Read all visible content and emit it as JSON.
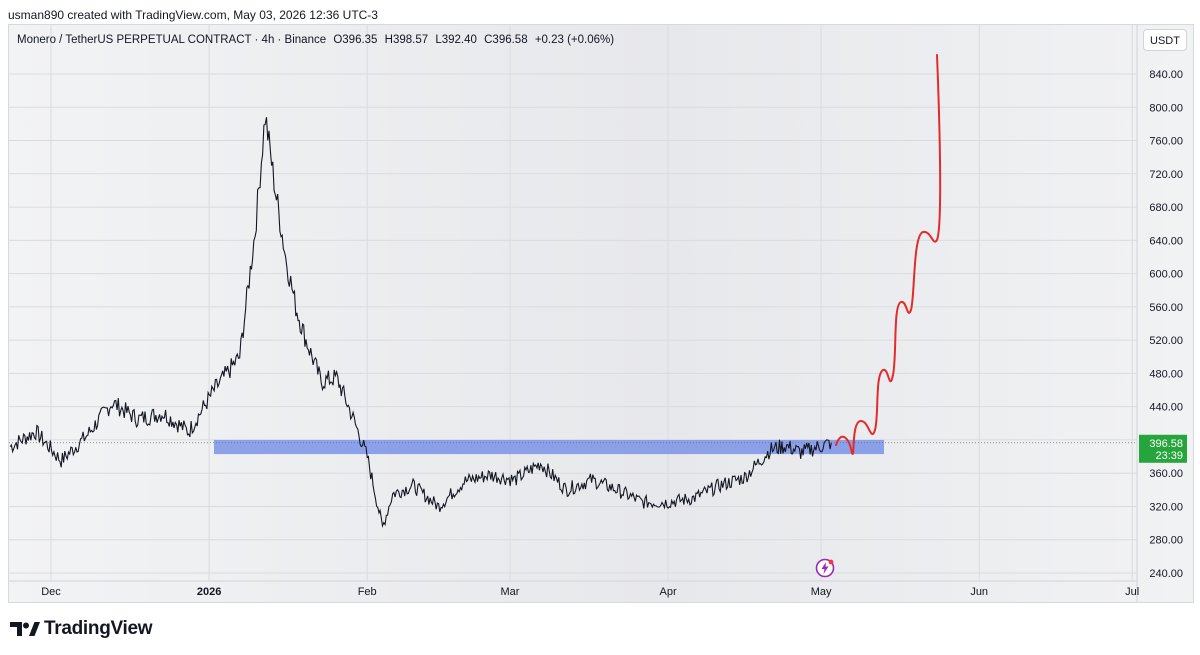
{
  "attribution": "usman890 created with TradingView.com, May 03, 2026 12:36 UTC-3",
  "symbol": {
    "name": "Monero / TetherUS PERPETUAL CONTRACT · 4h · Binance",
    "open": "O396.35",
    "high": "H398.57",
    "low": "L392.40",
    "close": "C396.58",
    "change": "+0.23 (+0.06%)"
  },
  "currency_button": "USDT",
  "price_axis": {
    "ticks": [
      "840.00",
      "800.00",
      "760.00",
      "720.00",
      "680.00",
      "640.00",
      "600.00",
      "560.00",
      "520.00",
      "480.00",
      "440.00",
      "400.00",
      "360.00",
      "320.00",
      "280.00",
      "240.00"
    ],
    "current_price": "396.58",
    "countdown": "23:39",
    "current_price_color": "#26a53c"
  },
  "time_axis": {
    "ticks": [
      "Dec",
      "2026",
      "Feb",
      "Mar",
      "Apr",
      "May",
      "Jun",
      "Jul"
    ]
  },
  "overlays": {
    "support_zone": {
      "low": 383,
      "high": 400,
      "color": "#7b93e8"
    },
    "projection_color": "#e32b2b"
  },
  "chart_data": {
    "type": "line",
    "title": "",
    "xlabel": "",
    "ylabel": "",
    "ylim": [
      230,
      870
    ],
    "series": [
      {
        "x": [
          "Nov 23",
          "Nov 28",
          "Dec 3",
          "Dec 8",
          "Dec 13",
          "Dec 18",
          "Dec 23",
          "Dec 28",
          "Jan 2",
          "Jan 7",
          "Jan 10",
          "Jan 12",
          "Jan 14",
          "Jan 16",
          "Jan 18",
          "Jan 20",
          "Jan 23",
          "Jan 26",
          "Jan 29",
          "Feb 1",
          "Feb 4",
          "Feb 6",
          "Feb 10",
          "Feb 15",
          "Feb 20",
          "Feb 25",
          "Mar 2",
          "Mar 7",
          "Mar 12",
          "Mar 17",
          "Mar 22",
          "Mar 27",
          "Apr 1",
          "Apr 6",
          "Apr 11",
          "Apr 16",
          "Apr 21",
          "Apr 24",
          "Apr 27",
          "May 3"
        ],
        "values": [
          392,
          410,
          375,
          405,
          445,
          425,
          432,
          410,
          460,
          500,
          650,
          790,
          700,
          620,
          560,
          520,
          470,
          475,
          430,
          380,
          295,
          335,
          345,
          320,
          350,
          358,
          352,
          372,
          340,
          352,
          340,
          325,
          325,
          330,
          345,
          355,
          388,
          393,
          385,
          396.58
        ]
      }
    ]
  }
}
